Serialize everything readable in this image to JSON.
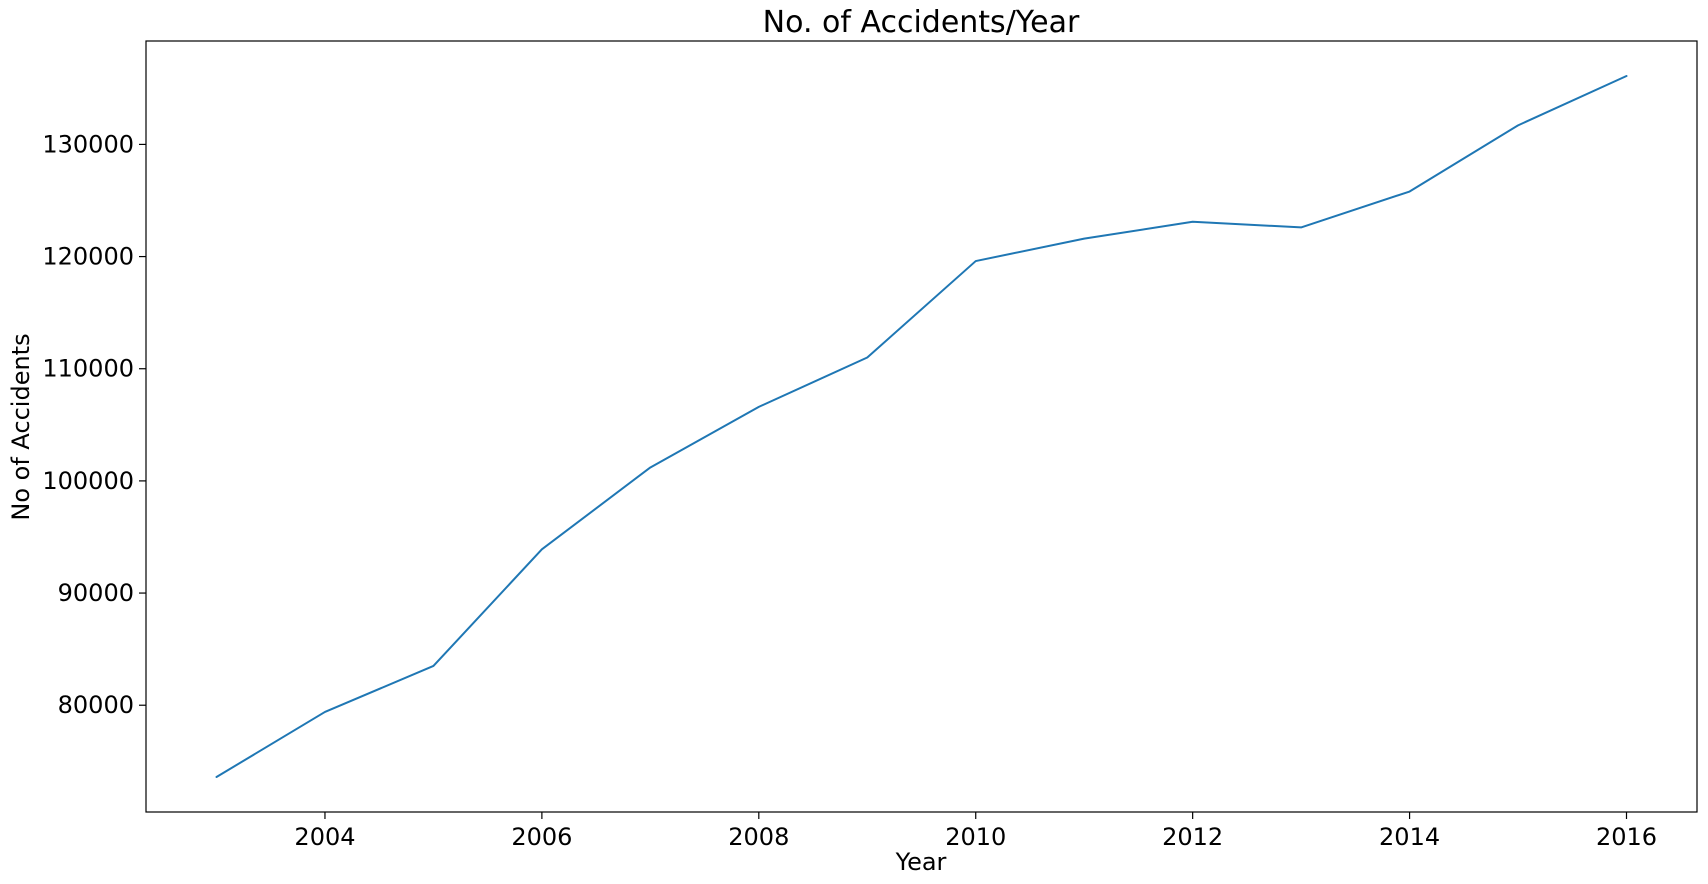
{
  "chart_data": {
    "type": "line",
    "title": "No. of Accidents/Year",
    "xlabel": "Year",
    "ylabel": "No of Accidents",
    "x": [
      2003,
      2004,
      2005,
      2006,
      2007,
      2008,
      2009,
      2010,
      2011,
      2012,
      2013,
      2014,
      2015,
      2016
    ],
    "series": [
      {
        "name": "",
        "color": "#1f77b4",
        "values": [
          73600,
          79400,
          83500,
          93900,
          101200,
          106600,
          111000,
          119600,
          121600,
          123100,
          122600,
          125800,
          131700,
          136100
        ]
      }
    ],
    "xlim": [
      2002.35,
      2016.65
    ],
    "ylim": [
      70480,
      139220
    ],
    "xticks": [
      2004,
      2006,
      2008,
      2010,
      2012,
      2014,
      2016
    ],
    "xtick_labels": [
      "2004",
      "2006",
      "2008",
      "2010",
      "2012",
      "2014",
      "2016"
    ],
    "yticks": [
      80000,
      90000,
      100000,
      110000,
      120000,
      130000
    ],
    "ytick_labels": [
      "80000",
      "90000",
      "100000",
      "110000",
      "120000",
      "130000"
    ],
    "grid": false,
    "legend": "none"
  }
}
